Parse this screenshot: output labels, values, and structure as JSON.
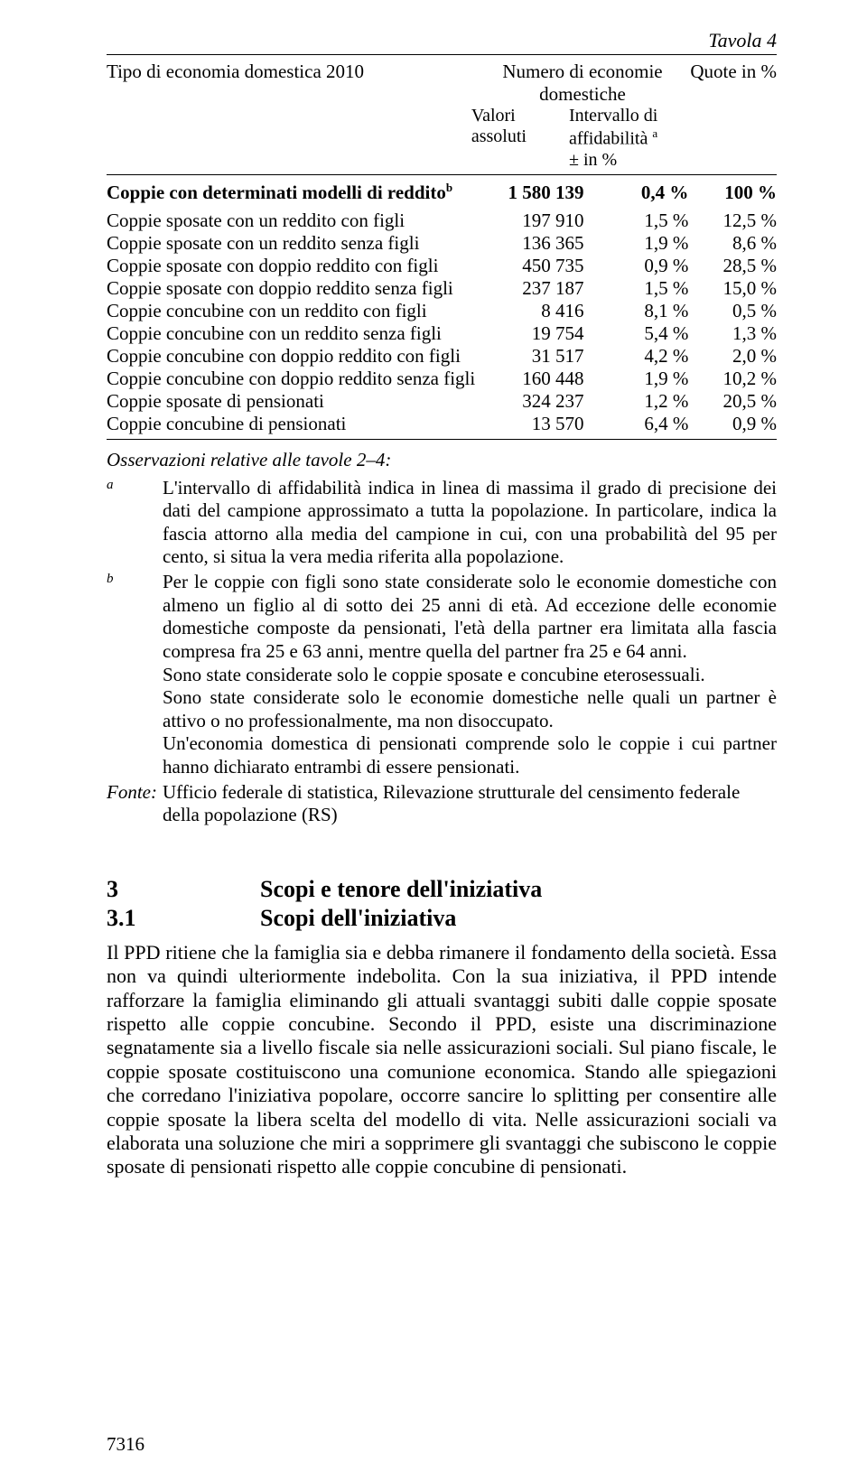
{
  "tavola": "Tavola 4",
  "header": {
    "col1": "Tipo di economia domestica 2010",
    "col2": "Numero di economie domestiche",
    "col3": "Quote in %",
    "sub_val": "Valori assoluti",
    "sub_int1": "Intervallo di",
    "sub_int2": "affidabilità ",
    "sub_int_sup": "a",
    "sub_int3": "± in %"
  },
  "rows": [
    {
      "label": "Coppie con determinati modelli di reddito",
      "sup": "b",
      "val": "1 580 139",
      "int": "0,4 %",
      "quote": "100 %",
      "bold": true
    },
    {
      "label": "Coppie sposate con un reddito con figli",
      "val": "197 910",
      "int": "1,5 %",
      "quote": "12,5 %"
    },
    {
      "label": "Coppie sposate con un reddito senza figli",
      "val": "136 365",
      "int": "1,9 %",
      "quote": "8,6 %"
    },
    {
      "label": "Coppie sposate con doppio reddito con figli",
      "val": "450 735",
      "int": "0,9 %",
      "quote": "28,5 %"
    },
    {
      "label": "Coppie sposate con doppio reddito senza figli",
      "val": "237 187",
      "int": "1,5 %",
      "quote": "15,0 %"
    },
    {
      "label": "Coppie concubine con un reddito con figli",
      "val": "8 416",
      "int": "8,1 %",
      "quote": "0,5 %"
    },
    {
      "label": "Coppie concubine con un reddito senza figli",
      "val": "19 754",
      "int": "5,4 %",
      "quote": "1,3 %"
    },
    {
      "label": "Coppie concubine con doppio reddito con figli",
      "val": "31 517",
      "int": "4,2 %",
      "quote": "2,0 %"
    },
    {
      "label": "Coppie concubine con doppio reddito senza figli",
      "val": "160 448",
      "int": "1,9 %",
      "quote": "10,2 %"
    },
    {
      "label": "Coppie sposate di pensionati",
      "val": "324 237",
      "int": "1,2 %",
      "quote": "20,5 %"
    },
    {
      "label": "Coppie concubine di pensionati",
      "val": "13 570",
      "int": "6,4 %",
      "quote": "0,9 %"
    }
  ],
  "obs_title": "Osservazioni relative alle tavole 2–4:",
  "notes": {
    "a_label": "a",
    "a_text": "L'intervallo di affidabilità indica in linea di massima il grado di precisione dei dati del campione approssimato a tutta la popolazione. In particolare, indica la fascia attorno alla media del campione in cui, con una probabilità del 95 per cento, si situa la vera media riferita alla popolazione.",
    "b_label": "b",
    "b_text": "Per le coppie con figli sono state considerate solo le economie domestiche con almeno un figlio al di sotto dei 25 anni di età. Ad eccezione delle economie domestiche composte da pensionati, l'età della partner era limitata alla fascia compresa fra 25 e 63 anni, mentre quella del partner fra 25 e 64 anni.",
    "b_text2": "Sono state considerate solo le coppie sposate e concubine eterosessuali.",
    "b_text3": "Sono state considerate solo le economie domestiche nelle quali un partner è attivo o no professionalmente, ma non disoccupato.",
    "b_text4": "Un'economia domestica di pensionati comprende solo le coppie i cui partner hanno dichiarato entrambi di essere pensionati.",
    "fonte_label": "Fonte:",
    "fonte_text": "Ufficio federale di statistica, Rilevazione strutturale del censimento federale della popolazione (RS)"
  },
  "sections": {
    "s3_num": "3",
    "s3_title": "Scopi e tenore dell'iniziativa",
    "s31_num": "3.1",
    "s31_title": "Scopi dell'iniziativa"
  },
  "body": "Il PPD ritiene che la famiglia sia e debba rimanere il fondamento della società. Essa non va quindi ulteriormente indebolita. Con la sua iniziativa, il PPD intende rafforzare la famiglia eliminando gli attuali svantaggi subiti dalle coppie sposate rispetto alle coppie concubine. Secondo il PPD, esiste una discriminazione segnatamente sia a livello fiscale sia nelle assicurazioni sociali. Sul piano fiscale, le coppie sposate costituiscono una comunione economica. Stando alle spiegazioni che corredano l'iniziativa popolare, occorre sancire lo splitting per consentire alle coppie sposate la libera scelta del modello di vita. Nelle assicurazioni sociali va elaborata una soluzione che miri a sopprimere gli svantaggi che subiscono le coppie sposate di pensionati rispetto alle coppie concubine di pensionati.",
  "page_number": "7316"
}
